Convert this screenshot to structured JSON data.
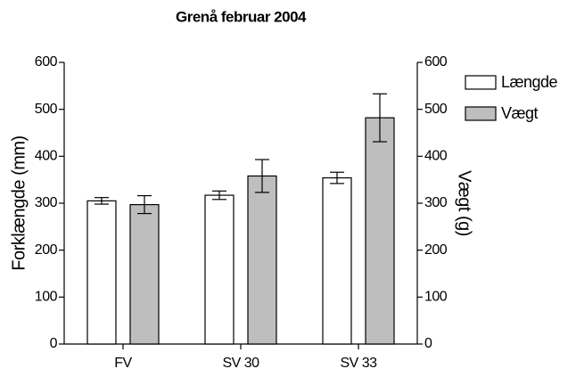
{
  "chart_data": {
    "type": "bar",
    "title": "Grenå februar 2004",
    "categories": [
      "FV",
      "SV 30",
      "SV 33"
    ],
    "y_label": "Forklængde (mm)",
    "y2_label": "Vægt (g)",
    "series": [
      {
        "name": "Længde",
        "color": "#ffffff",
        "values": [
          305,
          317,
          354
        ],
        "errors": [
          7,
          9,
          12
        ]
      },
      {
        "name": "Vægt",
        "color": "#bebebe",
        "axis": "y2",
        "values": [
          297,
          358,
          482
        ],
        "errors": [
          19,
          35,
          51
        ]
      }
    ],
    "ylim": [
      0,
      600
    ],
    "yticks": [
      0,
      100,
      200,
      300,
      400,
      500,
      600
    ],
    "y2lim": [
      0,
      600
    ],
    "y2ticks": [
      0,
      100,
      200,
      300,
      400,
      500,
      600
    ],
    "legend": "top-right",
    "grid": false
  }
}
